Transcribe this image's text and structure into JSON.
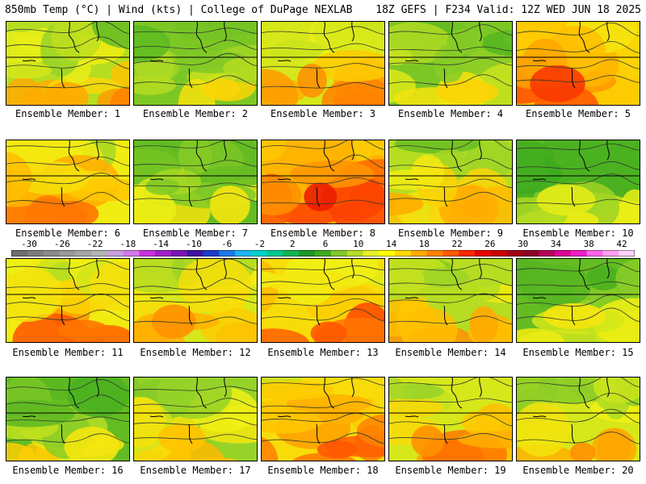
{
  "header": {
    "left": "850mb Temp (°C) | Wind (kts) | College of DuPage NEXLAB",
    "right": "18Z GEFS | F234 Valid: 12Z WED JUN 18 2025"
  },
  "colorbar": {
    "tick_labels": [
      "-30",
      "-26",
      "-22",
      "-18",
      "-14",
      "-10",
      "-6",
      "-2",
      "2",
      "6",
      "10",
      "14",
      "18",
      "22",
      "26",
      "30",
      "34",
      "38",
      "42"
    ],
    "colors": [
      "#6e6e6e",
      "#7c7c7c",
      "#8a8a8a",
      "#989898",
      "#a6a6a6",
      "#b4b4b4",
      "#c8a0dc",
      "#d278e6",
      "#c832dc",
      "#a020c8",
      "#7814b4",
      "#3c14a0",
      "#1e3cc8",
      "#1e78e6",
      "#1eb4f0",
      "#00d2c8",
      "#00c88c",
      "#14b450",
      "#1e9628",
      "#3caa1e",
      "#82c828",
      "#b4dc28",
      "#e6f028",
      "#ffff00",
      "#ffd700",
      "#ffaa00",
      "#ff8200",
      "#ff5a00",
      "#ff2800",
      "#e60000",
      "#c80000",
      "#a00014",
      "#8c0028",
      "#b4005a",
      "#dc0096",
      "#f01ec8",
      "#ff64e6",
      "#ffa0f0",
      "#ffd2fa"
    ]
  },
  "members": [
    {
      "label": "Ensemble Member: 1",
      "warmth": 0.55
    },
    {
      "label": "Ensemble Member: 2",
      "warmth": 0.45
    },
    {
      "label": "Ensemble Member: 3",
      "warmth": 0.6
    },
    {
      "label": "Ensemble Member: 4",
      "warmth": 0.45
    },
    {
      "label": "Ensemble Member: 5",
      "warmth": 0.75
    },
    {
      "label": "Ensemble Member: 6",
      "warmth": 0.65
    },
    {
      "label": "Ensemble Member: 7",
      "warmth": 0.4
    },
    {
      "label": "Ensemble Member: 8",
      "warmth": 0.8
    },
    {
      "label": "Ensemble Member: 9",
      "warmth": 0.55
    },
    {
      "label": "Ensemble Member: 10",
      "warmth": 0.35
    },
    {
      "label": "Ensemble Member: 11",
      "warmth": 0.65
    },
    {
      "label": "Ensemble Member: 12",
      "warmth": 0.6
    },
    {
      "label": "Ensemble Member: 13",
      "warmth": 0.7
    },
    {
      "label": "Ensemble Member: 14",
      "warmth": 0.55
    },
    {
      "label": "Ensemble Member: 15",
      "warmth": 0.4
    },
    {
      "label": "Ensemble Member: 16",
      "warmth": 0.4
    },
    {
      "label": "Ensemble Member: 17",
      "warmth": 0.5
    },
    {
      "label": "Ensemble Member: 18",
      "warmth": 0.7
    },
    {
      "label": "Ensemble Member: 19",
      "warmth": 0.6
    },
    {
      "label": "Ensemble Member: 20",
      "warmth": 0.6
    }
  ]
}
